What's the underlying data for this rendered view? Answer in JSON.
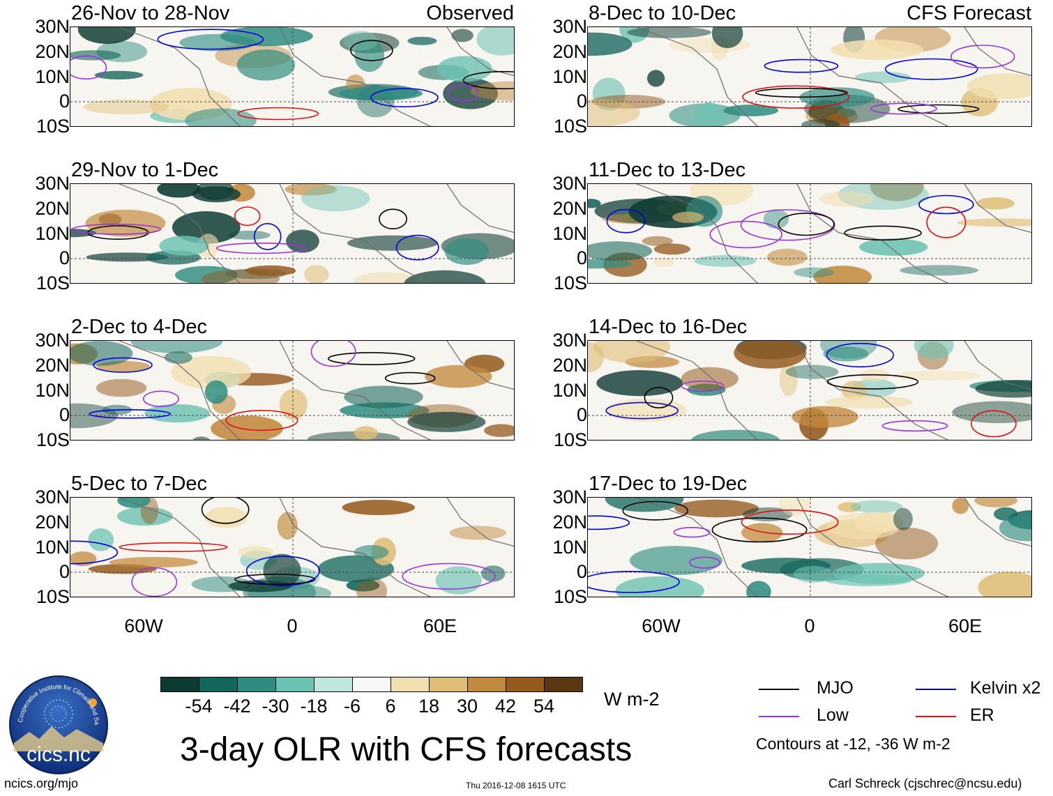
{
  "header": {
    "observed_label": "Observed",
    "forecast_label": "CFS Forecast"
  },
  "panels": {
    "obs": [
      {
        "title": "26-Nov to 28-Nov"
      },
      {
        "title": "29-Nov to 1-Dec"
      },
      {
        "title": "2-Dec to 4-Dec"
      },
      {
        "title": "5-Dec to 7-Dec"
      }
    ],
    "fcst": [
      {
        "title": "8-Dec to 10-Dec"
      },
      {
        "title": "11-Dec to 13-Dec"
      },
      {
        "title": "14-Dec to 16-Dec"
      },
      {
        "title": "17-Dec to 19-Dec"
      }
    ]
  },
  "axes": {
    "lat_labels": [
      "30N",
      "20N",
      "10N",
      "0",
      "10S"
    ],
    "lon_labels": [
      "60W",
      "0",
      "60E"
    ]
  },
  "colorbar": {
    "ticks": [
      "-54",
      "-42",
      "-30",
      "-18",
      "-6",
      "6",
      "18",
      "30",
      "42",
      "54"
    ],
    "colors": [
      "#0d3b33",
      "#14665c",
      "#2e8c80",
      "#6cc2b2",
      "#bfe7de",
      "#f7f7f5",
      "#f2dfb0",
      "#dfbd76",
      "#c28a3e",
      "#955a1e",
      "#5c3812"
    ],
    "units": "W m-2"
  },
  "legend": {
    "mjo": {
      "label": "MJO",
      "color": "#000000"
    },
    "kelvin": {
      "label": "Kelvin x2",
      "color": "#0000dd"
    },
    "low": {
      "label": "Low",
      "color": "#9933dd"
    },
    "er": {
      "label": "ER",
      "color": "#dd1111"
    },
    "contours_note": "Contours at -12, -36 W m-2"
  },
  "main_title": "3-day OLR with CFS forecasts",
  "logo": {
    "text": "cics.nc",
    "ring_text": "Cooperative Institute for Climate and Satellites"
  },
  "footer": {
    "left": "ncics.org/mjo",
    "center": "Thu 2016-12-08 1615 UTC",
    "right": "Carl Schreck (cjschrec@ncsu.edu)"
  }
}
